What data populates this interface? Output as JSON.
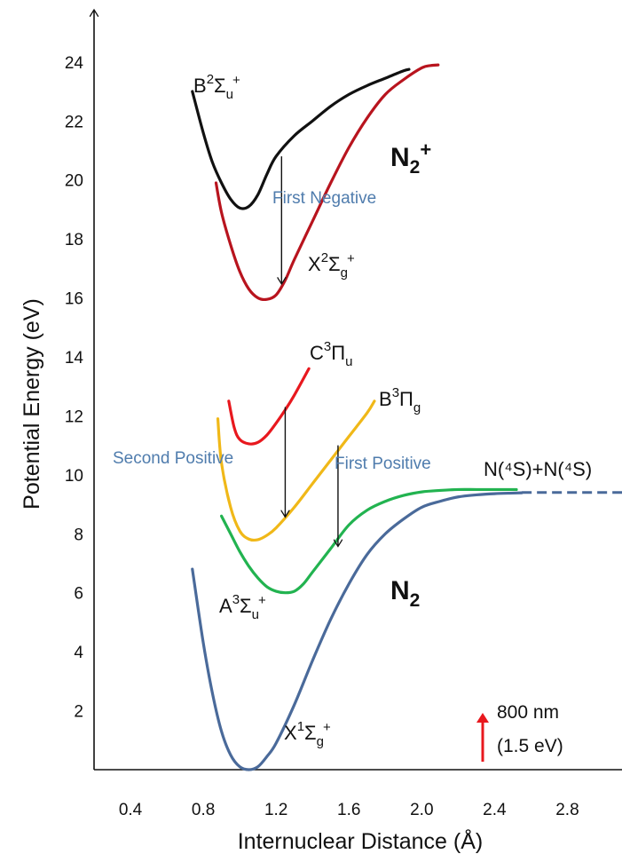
{
  "chart_data": {
    "type": "line",
    "xlabel": "Internuclear Distance (Å)",
    "ylabel": "Potential Energy (eV)",
    "xlim": [
      0.2,
      3.1
    ],
    "ylim": [
      0,
      25.5
    ],
    "x_ticks": [
      "0.4",
      "0.8",
      "1.2",
      "1.6",
      "2.0",
      "2.4",
      "2.8"
    ],
    "y_ticks": [
      "2",
      "4",
      "6",
      "8",
      "10",
      "12",
      "14",
      "16",
      "18",
      "20",
      "22",
      "24"
    ],
    "species_labels": {
      "ion": {
        "base": "N",
        "sub": "2",
        "sup": "+"
      },
      "neutral": {
        "base": "N",
        "sub": "2",
        "sup": ""
      }
    },
    "series": [
      {
        "name": "X¹Σg⁺",
        "label": {
          "base": "X",
          "pre_sup": "1",
          "greek": "Σ",
          "sub": "g",
          "sup": "+"
        },
        "color": "#4a6a9a",
        "x": [
          0.74,
          0.8,
          0.85,
          0.9,
          0.95,
          1.0,
          1.05,
          1.1,
          1.15,
          1.2,
          1.3,
          1.4,
          1.5,
          1.6,
          1.7,
          1.8,
          1.9,
          2.0,
          2.1,
          2.2,
          2.3,
          2.4,
          2.5,
          2.55
        ],
        "y": [
          6.8,
          4.3,
          2.6,
          1.3,
          0.5,
          0.1,
          0.0,
          0.1,
          0.45,
          0.9,
          2.2,
          3.7,
          5.1,
          6.3,
          7.3,
          8.0,
          8.5,
          8.9,
          9.1,
          9.25,
          9.32,
          9.36,
          9.38,
          9.39
        ]
      },
      {
        "name": "A³Σu⁺",
        "label": {
          "base": "A",
          "pre_sup": "3",
          "greek": "Σ",
          "sub": "u",
          "sup": "+"
        },
        "color": "#22b350",
        "x": [
          0.9,
          0.95,
          1.0,
          1.05,
          1.1,
          1.15,
          1.2,
          1.25,
          1.3,
          1.35,
          1.4,
          1.5,
          1.6,
          1.7,
          1.8,
          1.9,
          2.0,
          2.1,
          2.2,
          2.3,
          2.4,
          2.52
        ],
        "y": [
          8.6,
          8.0,
          7.4,
          6.9,
          6.5,
          6.2,
          6.05,
          6.0,
          6.05,
          6.3,
          6.7,
          7.5,
          8.3,
          8.8,
          9.1,
          9.3,
          9.42,
          9.47,
          9.5,
          9.5,
          9.5,
          9.5
        ]
      },
      {
        "name": "B³Πg",
        "label": {
          "base": "B",
          "pre_sup": "3",
          "greek": "Π",
          "sub": "g",
          "sup": ""
        },
        "color": "#f0b818",
        "x": [
          0.88,
          0.9,
          0.95,
          1.0,
          1.05,
          1.1,
          1.15,
          1.2,
          1.3,
          1.4,
          1.5,
          1.6,
          1.7,
          1.74
        ],
        "y": [
          11.9,
          10.4,
          8.9,
          8.1,
          7.82,
          7.8,
          7.95,
          8.2,
          8.9,
          9.7,
          10.5,
          11.3,
          12.1,
          12.5
        ]
      },
      {
        "name": "C³Πu",
        "label": {
          "base": "C",
          "pre_sup": "3",
          "greek": "Π",
          "sub": "u",
          "sup": ""
        },
        "color": "#e8181e",
        "x": [
          0.94,
          0.97,
          1.0,
          1.05,
          1.1,
          1.15,
          1.2,
          1.25,
          1.3,
          1.38
        ],
        "y": [
          12.5,
          11.6,
          11.2,
          11.05,
          11.1,
          11.35,
          11.75,
          12.2,
          12.7,
          13.6
        ]
      },
      {
        "name": "X²Σg⁺",
        "label": {
          "base": "X",
          "pre_sup": "2",
          "greek": "Σ",
          "sub": "g",
          "sup": "+"
        },
        "color": "#b8141e",
        "x": [
          0.87,
          0.9,
          0.95,
          1.0,
          1.05,
          1.1,
          1.15,
          1.2,
          1.25,
          1.3,
          1.4,
          1.5,
          1.6,
          1.7,
          1.8,
          1.9,
          2.0,
          2.05,
          2.09
        ],
        "y": [
          19.9,
          18.9,
          17.8,
          16.9,
          16.3,
          16.0,
          15.95,
          16.1,
          16.6,
          17.3,
          18.6,
          19.9,
          21.1,
          22.1,
          22.9,
          23.4,
          23.8,
          23.88,
          23.9
        ]
      },
      {
        "name": "B²Σu⁺",
        "label": {
          "base": "B",
          "pre_sup": "2",
          "greek": "Σ",
          "sub": "u",
          "sup": "+"
        },
        "color": "#111111",
        "x": [
          0.74,
          0.8,
          0.85,
          0.9,
          0.95,
          1.0,
          1.05,
          1.1,
          1.15,
          1.2,
          1.3,
          1.4,
          1.5,
          1.6,
          1.7,
          1.8,
          1.9,
          1.93
        ],
        "y": [
          23.0,
          21.6,
          20.6,
          19.9,
          19.35,
          19.05,
          19.1,
          19.5,
          20.2,
          20.8,
          21.5,
          22.0,
          22.5,
          22.9,
          23.2,
          23.45,
          23.7,
          23.75
        ]
      }
    ],
    "asymptote": {
      "label": "N(⁴S)+N(⁴S)",
      "color": "#4a6a9a",
      "y": 9.4,
      "x_start": 2.55,
      "x_end": 3.1
    },
    "transitions": [
      {
        "name": "First Negative",
        "x": 1.23,
        "y_start": 20.8,
        "y_end": 16.5,
        "label_color": "#4f7cad"
      },
      {
        "name": "Second Positive",
        "x": 1.25,
        "y_start": 12.3,
        "y_end": 8.6,
        "label_color": "#4f7cad"
      },
      {
        "name": "First Positive",
        "x": 1.54,
        "y_start": 11.0,
        "y_end": 7.6,
        "label_color": "#4f7cad"
      }
    ],
    "laser_photon": {
      "label_line1": "800 nm",
      "label_line2": "(1.5 eV)",
      "color": "#e8181e",
      "energy_ev": 1.5
    },
    "grid": false
  }
}
